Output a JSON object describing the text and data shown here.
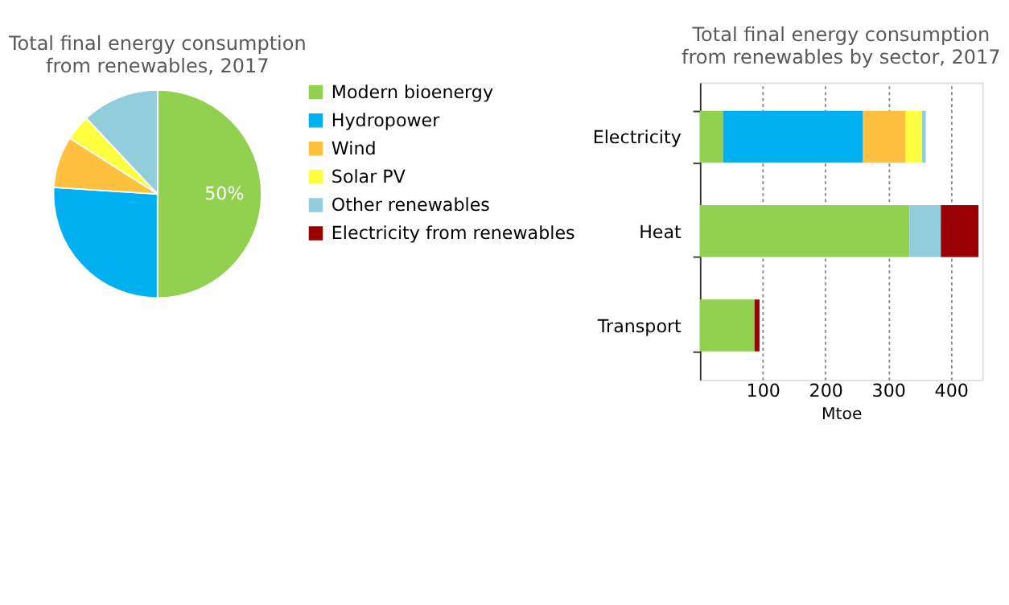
{
  "chart_data": [
    {
      "type": "pie",
      "title": "Total final energy consumption from renewables, 2017",
      "categories": [
        "Modern bioenergy",
        "Hydropower",
        "Wind",
        "Solar PV",
        "Other renewables"
      ],
      "values": [
        50,
        26,
        8,
        4,
        12
      ],
      "colors": [
        "#92d050",
        "#00b0f0",
        "#ffbf3f",
        "#ffff40",
        "#92cddc"
      ],
      "value_labels": [
        "50%",
        null,
        null,
        null,
        null
      ],
      "legend": "right"
    },
    {
      "type": "bar",
      "title": "Total final energy consumption from renewables by sector, 2017",
      "orientation": "horizontal",
      "stacked": true,
      "categories": [
        "Electricity",
        "Heat",
        "Transport"
      ],
      "xlabel": "Mtoe",
      "xlim": [
        0,
        450
      ],
      "xticks": [
        100,
        200,
        300,
        400
      ],
      "grid": "x",
      "series": [
        {
          "name": "Modern bioenergy",
          "color": "#92d050",
          "values": [
            37,
            334,
            87
          ]
        },
        {
          "name": "Hydropower",
          "color": "#00b0f0",
          "values": [
            223,
            null,
            null
          ]
        },
        {
          "name": "Wind",
          "color": "#ffbf3f",
          "values": [
            68,
            null,
            null
          ]
        },
        {
          "name": "Solar PV",
          "color": "#ffff40",
          "values": [
            26,
            null,
            null
          ]
        },
        {
          "name": "Other renewables",
          "color": "#92cddc",
          "values": [
            6,
            50,
            null
          ]
        },
        {
          "name": "Electricity from renewables",
          "color": "#990000",
          "values": [
            null,
            60,
            8
          ]
        }
      ]
    }
  ]
}
